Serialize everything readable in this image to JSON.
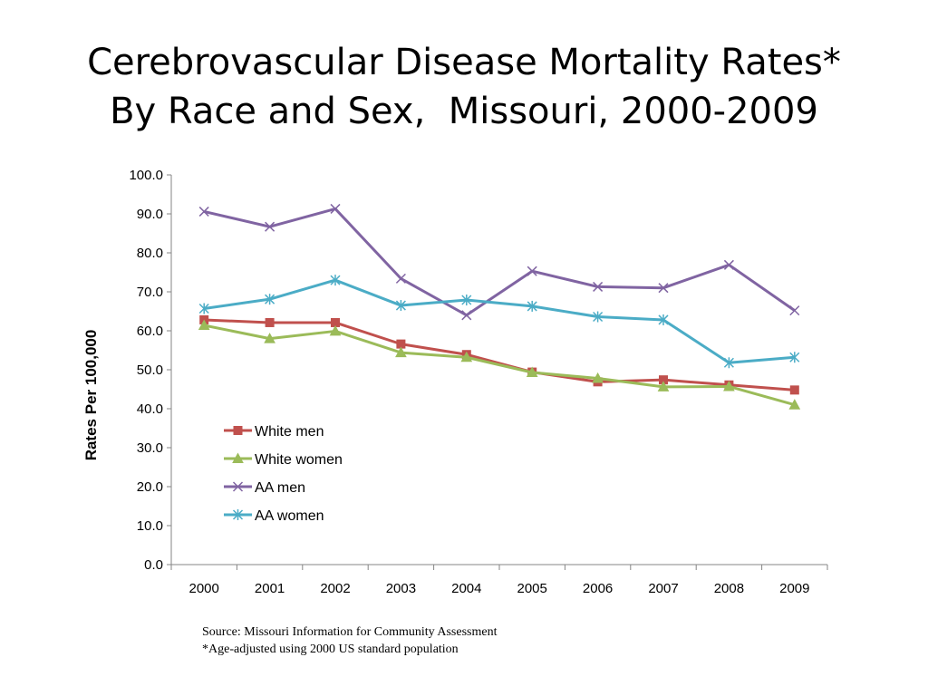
{
  "title_line1": "Cerebrovascular Disease Mortality Rates*",
  "title_line2": "By Race and Sex,  Missouri, 2000-2009",
  "notes": {
    "source": "Source: Missouri Information for Community Assessment",
    "footnote": "*Age-adjusted using 2000 US standard population"
  },
  "chart_data": {
    "type": "line",
    "ylabel": "Rates Per 100,000",
    "xlabel": "",
    "ylim": [
      0,
      100
    ],
    "ytick_step": 10,
    "ytick_labels": [
      "0.0",
      "10.0",
      "20.0",
      "30.0",
      "40.0",
      "50.0",
      "60.0",
      "70.0",
      "80.0",
      "90.0",
      "100.0"
    ],
    "categories": [
      "2000",
      "2001",
      "2002",
      "2003",
      "2004",
      "2005",
      "2006",
      "2007",
      "2008",
      "2009"
    ],
    "grid": false,
    "legend_position": "lower-left",
    "series": [
      {
        "name": "White men",
        "color": "#c0504d",
        "marker": "square",
        "values": [
          62.8,
          62.1,
          62.1,
          56.6,
          53.9,
          49.4,
          46.9,
          47.4,
          46.1,
          44.8
        ]
      },
      {
        "name": "White women",
        "color": "#9bbb59",
        "marker": "triangle",
        "values": [
          61.4,
          58.0,
          59.9,
          54.4,
          53.2,
          49.3,
          47.8,
          45.6,
          45.7,
          41.0
        ]
      },
      {
        "name": "AA men",
        "color": "#8064a2",
        "marker": "x",
        "values": [
          90.6,
          86.7,
          91.3,
          73.4,
          64.0,
          75.3,
          71.3,
          71.0,
          76.9,
          65.2
        ]
      },
      {
        "name": "AA women",
        "color": "#4bacc6",
        "marker": "star",
        "values": [
          65.7,
          68.1,
          73.0,
          66.5,
          67.9,
          66.3,
          63.6,
          62.8,
          51.8,
          53.2
        ]
      }
    ]
  }
}
